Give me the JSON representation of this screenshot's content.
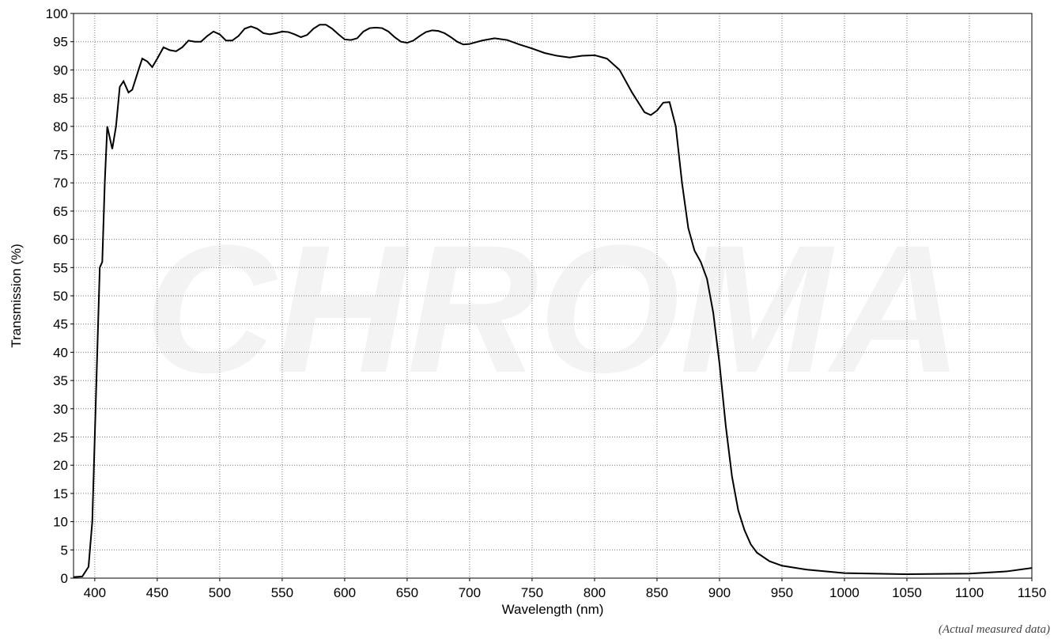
{
  "chart_data": {
    "type": "line",
    "xlabel": "Wavelength (nm)",
    "ylabel": "Transmission (%)",
    "watermark": "CHROMA",
    "note": "(Actual measured data)",
    "xlim": [
      383,
      1150
    ],
    "ylim": [
      0,
      100
    ],
    "xticks": [
      400,
      450,
      500,
      550,
      600,
      650,
      700,
      750,
      800,
      850,
      900,
      950,
      1000,
      1050,
      1100,
      1150
    ],
    "yticks": [
      0,
      5,
      10,
      15,
      20,
      25,
      30,
      35,
      40,
      45,
      50,
      55,
      60,
      65,
      70,
      75,
      80,
      85,
      90,
      95,
      100
    ],
    "grid": true,
    "series": [
      {
        "color": "#000000",
        "x": [
          383,
          390,
          395,
          398,
          400,
          402,
          404,
          406,
          408,
          410,
          412,
          414,
          417,
          420,
          423,
          427,
          430,
          435,
          438,
          442,
          446,
          450,
          455,
          460,
          465,
          470,
          475,
          480,
          485,
          490,
          495,
          500,
          505,
          510,
          515,
          520,
          525,
          530,
          535,
          540,
          545,
          550,
          555,
          560,
          565,
          570,
          575,
          580,
          585,
          590,
          595,
          600,
          605,
          610,
          615,
          620,
          625,
          630,
          635,
          640,
          645,
          650,
          655,
          660,
          665,
          670,
          675,
          680,
          685,
          690,
          695,
          700,
          710,
          720,
          730,
          740,
          750,
          760,
          770,
          780,
          790,
          800,
          810,
          820,
          830,
          840,
          845,
          850,
          855,
          860,
          865,
          870,
          875,
          880,
          885,
          890,
          895,
          900,
          905,
          910,
          915,
          920,
          925,
          930,
          940,
          950,
          970,
          1000,
          1050,
          1100,
          1130,
          1150
        ],
        "values": [
          0.2,
          0.3,
          2,
          10,
          25,
          40,
          55,
          56,
          70,
          80,
          78,
          76,
          80,
          87,
          88,
          86,
          86.5,
          90,
          92,
          91.5,
          90.5,
          92,
          94,
          93.5,
          93.3,
          94,
          95.2,
          95,
          95,
          96,
          96.8,
          96.3,
          95.2,
          95.2,
          96,
          97.3,
          97.7,
          97.3,
          96.5,
          96.3,
          96.5,
          96.8,
          96.7,
          96.3,
          95.8,
          96.2,
          97.3,
          98,
          98,
          97.3,
          96.3,
          95.4,
          95.3,
          95.6,
          96.8,
          97.4,
          97.5,
          97.4,
          96.8,
          95.8,
          95,
          94.8,
          95.2,
          96,
          96.7,
          97,
          96.9,
          96.5,
          95.8,
          95,
          94.5,
          94.6,
          95.2,
          95.6,
          95.3,
          94.5,
          93.8,
          93,
          92.5,
          92.2,
          92.5,
          92.6,
          92,
          90,
          86,
          82.5,
          82,
          82.8,
          84.2,
          84.3,
          80,
          70,
          62,
          58,
          56,
          53,
          47,
          38,
          27,
          18,
          12,
          8.5,
          6,
          4.5,
          3,
          2.2,
          1.5,
          0.9,
          0.7,
          0.8,
          1.2,
          1.8
        ]
      }
    ]
  }
}
